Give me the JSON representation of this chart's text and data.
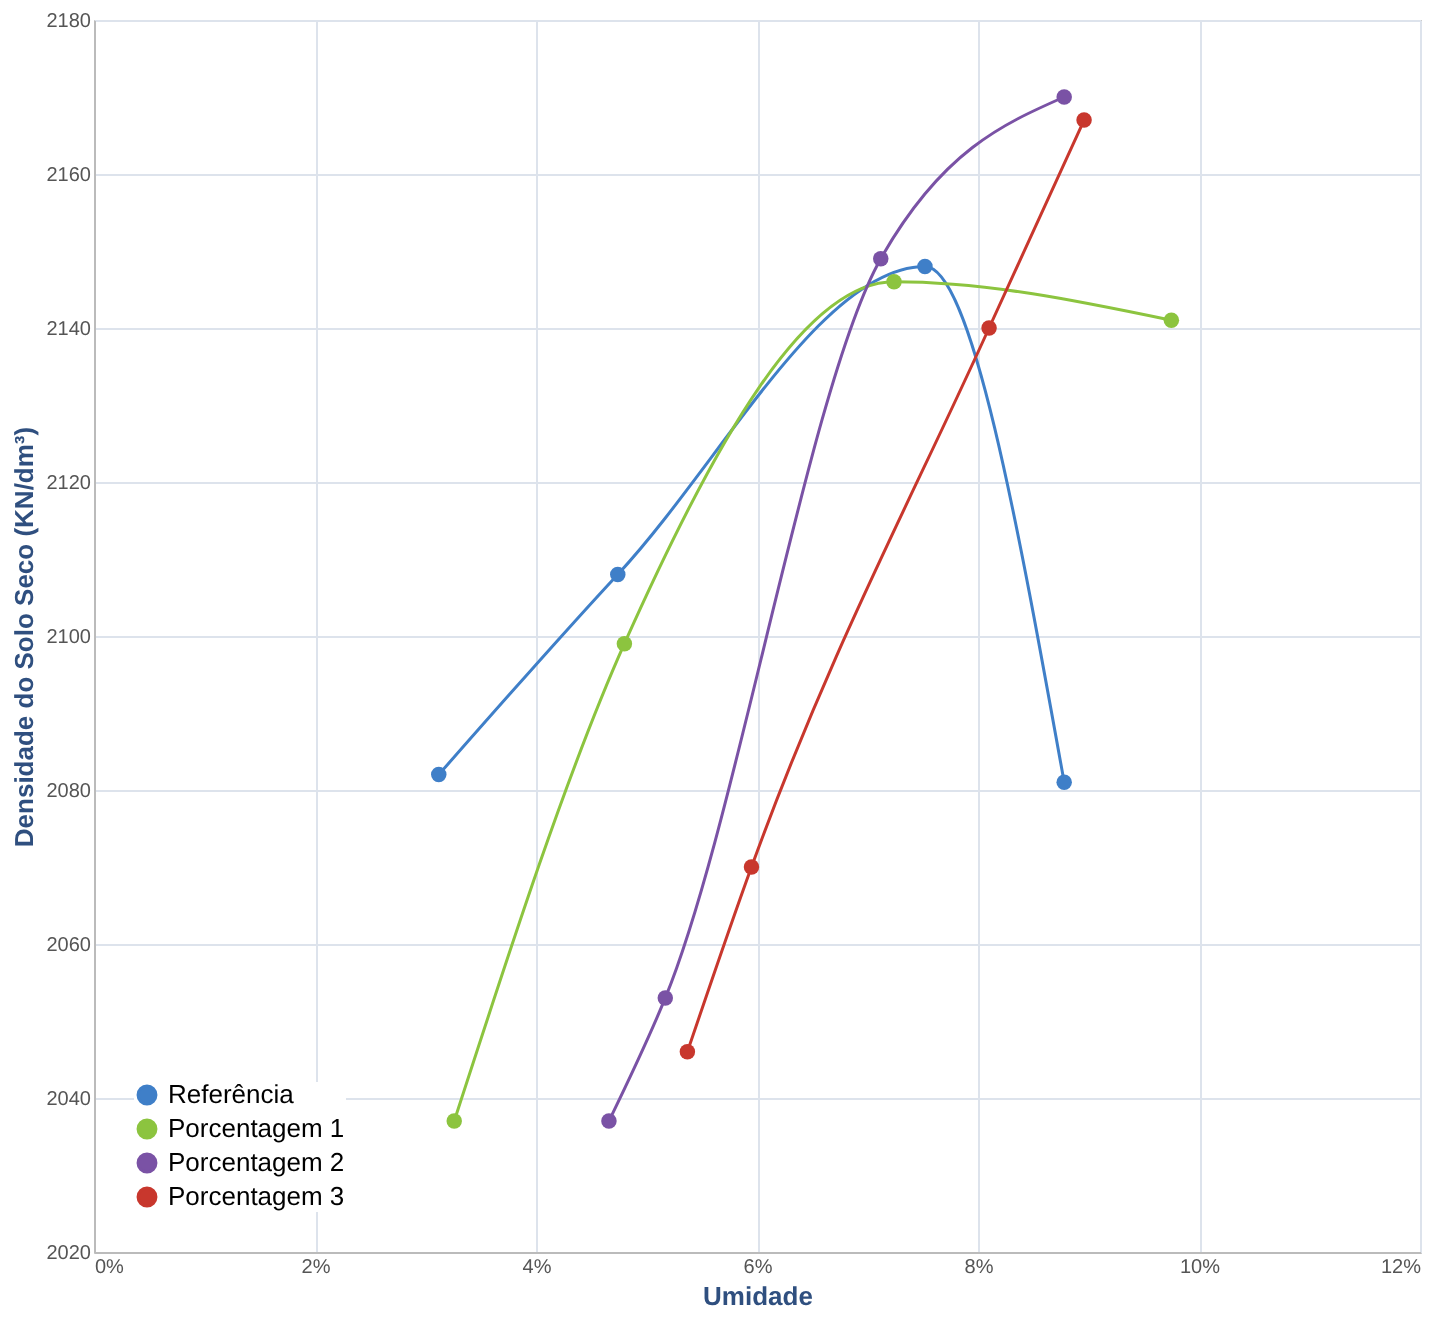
{
  "chart_data": {
    "type": "line",
    "xlabel": "Umidade",
    "ylabel": "Densidade do Solo Seco (KN/dm³)",
    "xlim": [
      0,
      12
    ],
    "xticks": [
      {
        "value": 0,
        "label": "0%"
      },
      {
        "value": 2,
        "label": "2%"
      },
      {
        "value": 4,
        "label": "4%"
      },
      {
        "value": 6,
        "label": "6%"
      },
      {
        "value": 8,
        "label": "8%"
      },
      {
        "value": 10,
        "label": "10%"
      },
      {
        "value": 12,
        "label": "12%"
      }
    ],
    "ylim": [
      2020,
      2180
    ],
    "yticks": [
      2020,
      2040,
      2060,
      2080,
      2100,
      2120,
      2140,
      2160,
      2180
    ],
    "grid": true,
    "legend": "bottom left",
    "marker": "circle",
    "line_style": "solid",
    "series": [
      {
        "name": "Referência",
        "color": "#3f7fc8",
        "x": [
          3.12,
          4.74,
          7.52,
          8.78
        ],
        "values": [
          2082,
          2108,
          2148,
          2081
        ]
      },
      {
        "name": "Porcentagem 1",
        "color": "#8cc43f",
        "x": [
          3.26,
          4.8,
          7.24,
          9.75
        ],
        "values": [
          2037,
          2099,
          2146,
          2141
        ]
      },
      {
        "name": "Porcentagem 2",
        "color": "#7a52a5",
        "x": [
          4.66,
          5.17,
          7.12,
          8.78
        ],
        "values": [
          2037,
          2053,
          2149,
          2170
        ]
      },
      {
        "name": "Porcentagem 3",
        "color": "#c8372d",
        "x": [
          5.37,
          5.95,
          8.1,
          8.96
        ],
        "values": [
          2046,
          2070,
          2140,
          2167
        ]
      }
    ]
  }
}
